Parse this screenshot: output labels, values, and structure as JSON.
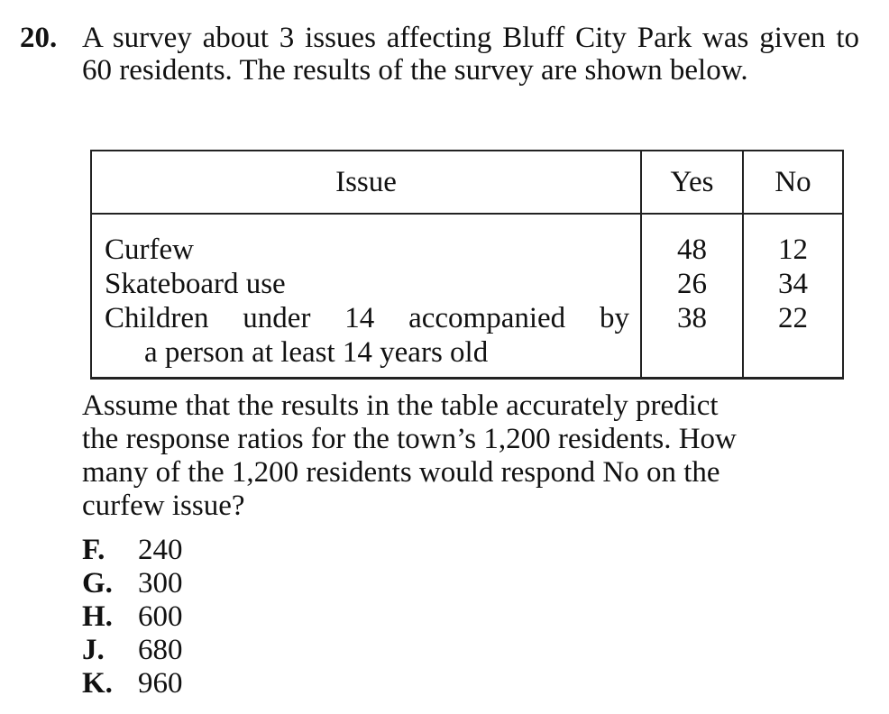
{
  "question": {
    "number": "20.",
    "stem": "A survey about 3 issues affecting Bluff City Park was given to 60 residents. The results of the survey are shown below."
  },
  "table": {
    "headers": {
      "issue": "Issue",
      "yes": "Yes",
      "no": "No"
    },
    "rows": [
      {
        "issue": "Curfew",
        "yes": "48",
        "no": "12"
      },
      {
        "issue": "Skateboard use",
        "yes": "26",
        "no": "34"
      },
      {
        "issue_line1": "Children under 14 accompanied by",
        "issue_line2": "a person at least 14 years old",
        "yes": "38",
        "no": "22"
      }
    ]
  },
  "followup": {
    "line1": "Assume that the results in the table accurately predict",
    "line2": "the response ratios for the town’s 1,200 residents. How",
    "line3": "many of the 1,200 residents would respond No on the",
    "line4": "curfew issue?"
  },
  "choices": [
    {
      "letter": "F.",
      "value": "240"
    },
    {
      "letter": "G.",
      "value": "300"
    },
    {
      "letter": "H.",
      "value": "600"
    },
    {
      "letter": "J.",
      "value": "680"
    },
    {
      "letter": "K.",
      "value": "960"
    }
  ]
}
